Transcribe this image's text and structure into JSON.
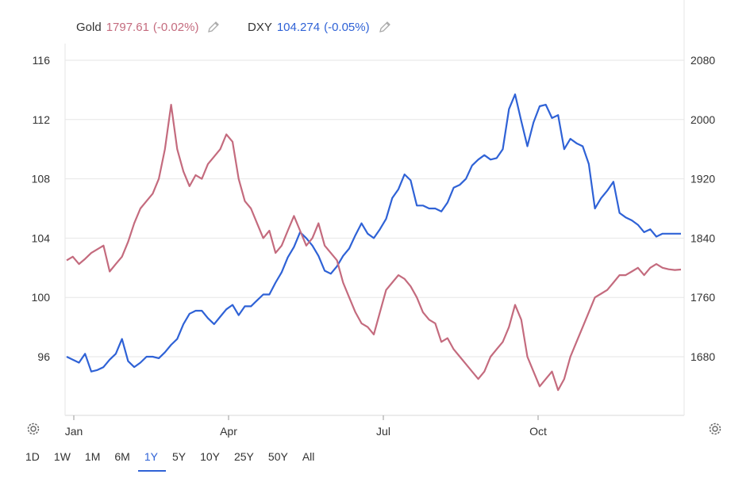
{
  "legend": {
    "gold": {
      "name": "Gold",
      "value": "1797.61",
      "change": "(-0.02%)"
    },
    "dxy": {
      "name": "DXY",
      "value": "104.274",
      "change": "(-0.05%)"
    },
    "edit_icon": "pencil-icon"
  },
  "settings_icon": "gear-icon",
  "range_buttons": [
    "1D",
    "1W",
    "1M",
    "6M",
    "1Y",
    "5Y",
    "10Y",
    "25Y",
    "50Y",
    "All"
  ],
  "active_range": "1Y",
  "colors": {
    "gold": "#c46b7e",
    "dxy": "#2f62d6",
    "grid": "#e6e6e6",
    "accent": "#2f62d6"
  },
  "chart_data": {
    "type": "line",
    "x_ticks": [
      "Jan",
      "Apr",
      "Jul",
      "Oct"
    ],
    "left_axis": {
      "series": "DXY",
      "ticks": [
        96,
        100,
        104,
        108,
        112,
        116
      ],
      "range": [
        92,
        116
      ]
    },
    "right_axis": {
      "series": "Gold",
      "ticks": [
        1680,
        1760,
        1840,
        1920,
        2000,
        2080
      ],
      "range": [
        1600,
        2080
      ]
    },
    "grid": true,
    "series": [
      {
        "name": "DXY",
        "axis": "left",
        "t": [
          0.0,
          0.01,
          0.02,
          0.03,
          0.04,
          0.05,
          0.06,
          0.07,
          0.08,
          0.09,
          0.1,
          0.11,
          0.12,
          0.13,
          0.14,
          0.15,
          0.16,
          0.17,
          0.18,
          0.19,
          0.2,
          0.21,
          0.22,
          0.23,
          0.24,
          0.25,
          0.26,
          0.27,
          0.28,
          0.29,
          0.3,
          0.31,
          0.32,
          0.33,
          0.34,
          0.35,
          0.36,
          0.37,
          0.38,
          0.39,
          0.4,
          0.41,
          0.42,
          0.43,
          0.44,
          0.45,
          0.46,
          0.47,
          0.48,
          0.49,
          0.5,
          0.51,
          0.52,
          0.53,
          0.54,
          0.55,
          0.56,
          0.57,
          0.58,
          0.59,
          0.6,
          0.61,
          0.62,
          0.63,
          0.64,
          0.65,
          0.66,
          0.67,
          0.68,
          0.69,
          0.7,
          0.71,
          0.72,
          0.73,
          0.74,
          0.75,
          0.76,
          0.77,
          0.78,
          0.79,
          0.8,
          0.81,
          0.82,
          0.83,
          0.84,
          0.85,
          0.86,
          0.87,
          0.88,
          0.89,
          0.9,
          0.91,
          0.92,
          0.93,
          0.94,
          0.95,
          0.96,
          0.97,
          0.98,
          0.99,
          1.0
        ],
        "values": [
          96.0,
          95.8,
          95.6,
          96.2,
          95.0,
          95.1,
          95.3,
          95.8,
          96.2,
          97.2,
          95.7,
          95.3,
          95.6,
          96.0,
          96.0,
          95.9,
          96.3,
          96.8,
          97.2,
          98.2,
          98.9,
          99.1,
          99.1,
          98.6,
          98.2,
          98.7,
          99.2,
          99.5,
          98.8,
          99.4,
          99.4,
          99.8,
          100.2,
          100.2,
          101.0,
          101.7,
          102.7,
          103.4,
          104.4,
          104.0,
          103.5,
          102.8,
          101.8,
          101.6,
          102.1,
          102.8,
          103.3,
          104.2,
          105.0,
          104.3,
          104.0,
          104.6,
          105.3,
          106.7,
          107.3,
          108.3,
          107.9,
          106.2,
          106.2,
          106.0,
          106.0,
          105.8,
          106.4,
          107.4,
          107.6,
          108.0,
          108.9,
          109.3,
          109.6,
          109.3,
          109.4,
          110.0,
          112.7,
          113.7,
          111.9,
          110.2,
          111.8,
          112.9,
          113.0,
          112.1,
          112.3,
          110.0,
          110.7,
          110.4,
          110.2,
          109.0,
          106.0,
          106.7,
          107.2,
          107.8,
          105.7,
          105.4,
          105.2,
          104.9,
          104.4,
          104.6,
          104.1,
          104.3,
          104.3,
          104.3,
          104.3
        ]
      },
      {
        "name": "Gold",
        "axis": "right",
        "t": [
          0.0,
          0.01,
          0.02,
          0.03,
          0.04,
          0.05,
          0.06,
          0.07,
          0.08,
          0.09,
          0.1,
          0.11,
          0.12,
          0.13,
          0.14,
          0.15,
          0.16,
          0.17,
          0.18,
          0.19,
          0.2,
          0.21,
          0.22,
          0.23,
          0.24,
          0.25,
          0.26,
          0.27,
          0.28,
          0.29,
          0.3,
          0.31,
          0.32,
          0.33,
          0.34,
          0.35,
          0.36,
          0.37,
          0.38,
          0.39,
          0.4,
          0.41,
          0.42,
          0.43,
          0.44,
          0.45,
          0.46,
          0.47,
          0.48,
          0.49,
          0.5,
          0.51,
          0.52,
          0.53,
          0.54,
          0.55,
          0.56,
          0.57,
          0.58,
          0.59,
          0.6,
          0.61,
          0.62,
          0.63,
          0.64,
          0.65,
          0.66,
          0.67,
          0.68,
          0.69,
          0.7,
          0.71,
          0.72,
          0.73,
          0.74,
          0.75,
          0.76,
          0.77,
          0.78,
          0.79,
          0.8,
          0.81,
          0.82,
          0.83,
          0.84,
          0.85,
          0.86,
          0.87,
          0.88,
          0.89,
          0.9,
          0.91,
          0.92,
          0.93,
          0.94,
          0.95,
          0.96,
          0.97,
          0.98,
          0.99,
          1.0
        ],
        "values": [
          1810.0,
          1815.0,
          1805.0,
          1812.0,
          1820.0,
          1825.0,
          1830.0,
          1795.0,
          1805.0,
          1815.0,
          1835.0,
          1860.0,
          1880.0,
          1890.0,
          1900.0,
          1920.0,
          1960.0,
          2020.0,
          1960.0,
          1930.0,
          1910.0,
          1925.0,
          1920.0,
          1940.0,
          1950.0,
          1960.0,
          1980.0,
          1970.0,
          1920.0,
          1890.0,
          1880.0,
          1860.0,
          1840.0,
          1850.0,
          1820.0,
          1830.0,
          1850.0,
          1870.0,
          1850.0,
          1830.0,
          1840.0,
          1860.0,
          1830.0,
          1820.0,
          1810.0,
          1780.0,
          1760.0,
          1740.0,
          1725.0,
          1720.0,
          1710.0,
          1740.0,
          1770.0,
          1780.0,
          1790.0,
          1785.0,
          1775.0,
          1760.0,
          1740.0,
          1730.0,
          1725.0,
          1700.0,
          1705.0,
          1690.0,
          1680.0,
          1670.0,
          1660.0,
          1650.0,
          1660.0,
          1680.0,
          1690.0,
          1700.0,
          1720.0,
          1750.0,
          1730.0,
          1680.0,
          1660.0,
          1640.0,
          1650.0,
          1660.0,
          1635.0,
          1650.0,
          1680.0,
          1700.0,
          1720.0,
          1740.0,
          1760.0,
          1765.0,
          1770.0,
          1780.0,
          1790.0,
          1790.0,
          1795.0,
          1800.0,
          1790.0,
          1800.0,
          1805.0,
          1800.0,
          1798.0,
          1797.0,
          1797.6
        ]
      }
    ]
  }
}
